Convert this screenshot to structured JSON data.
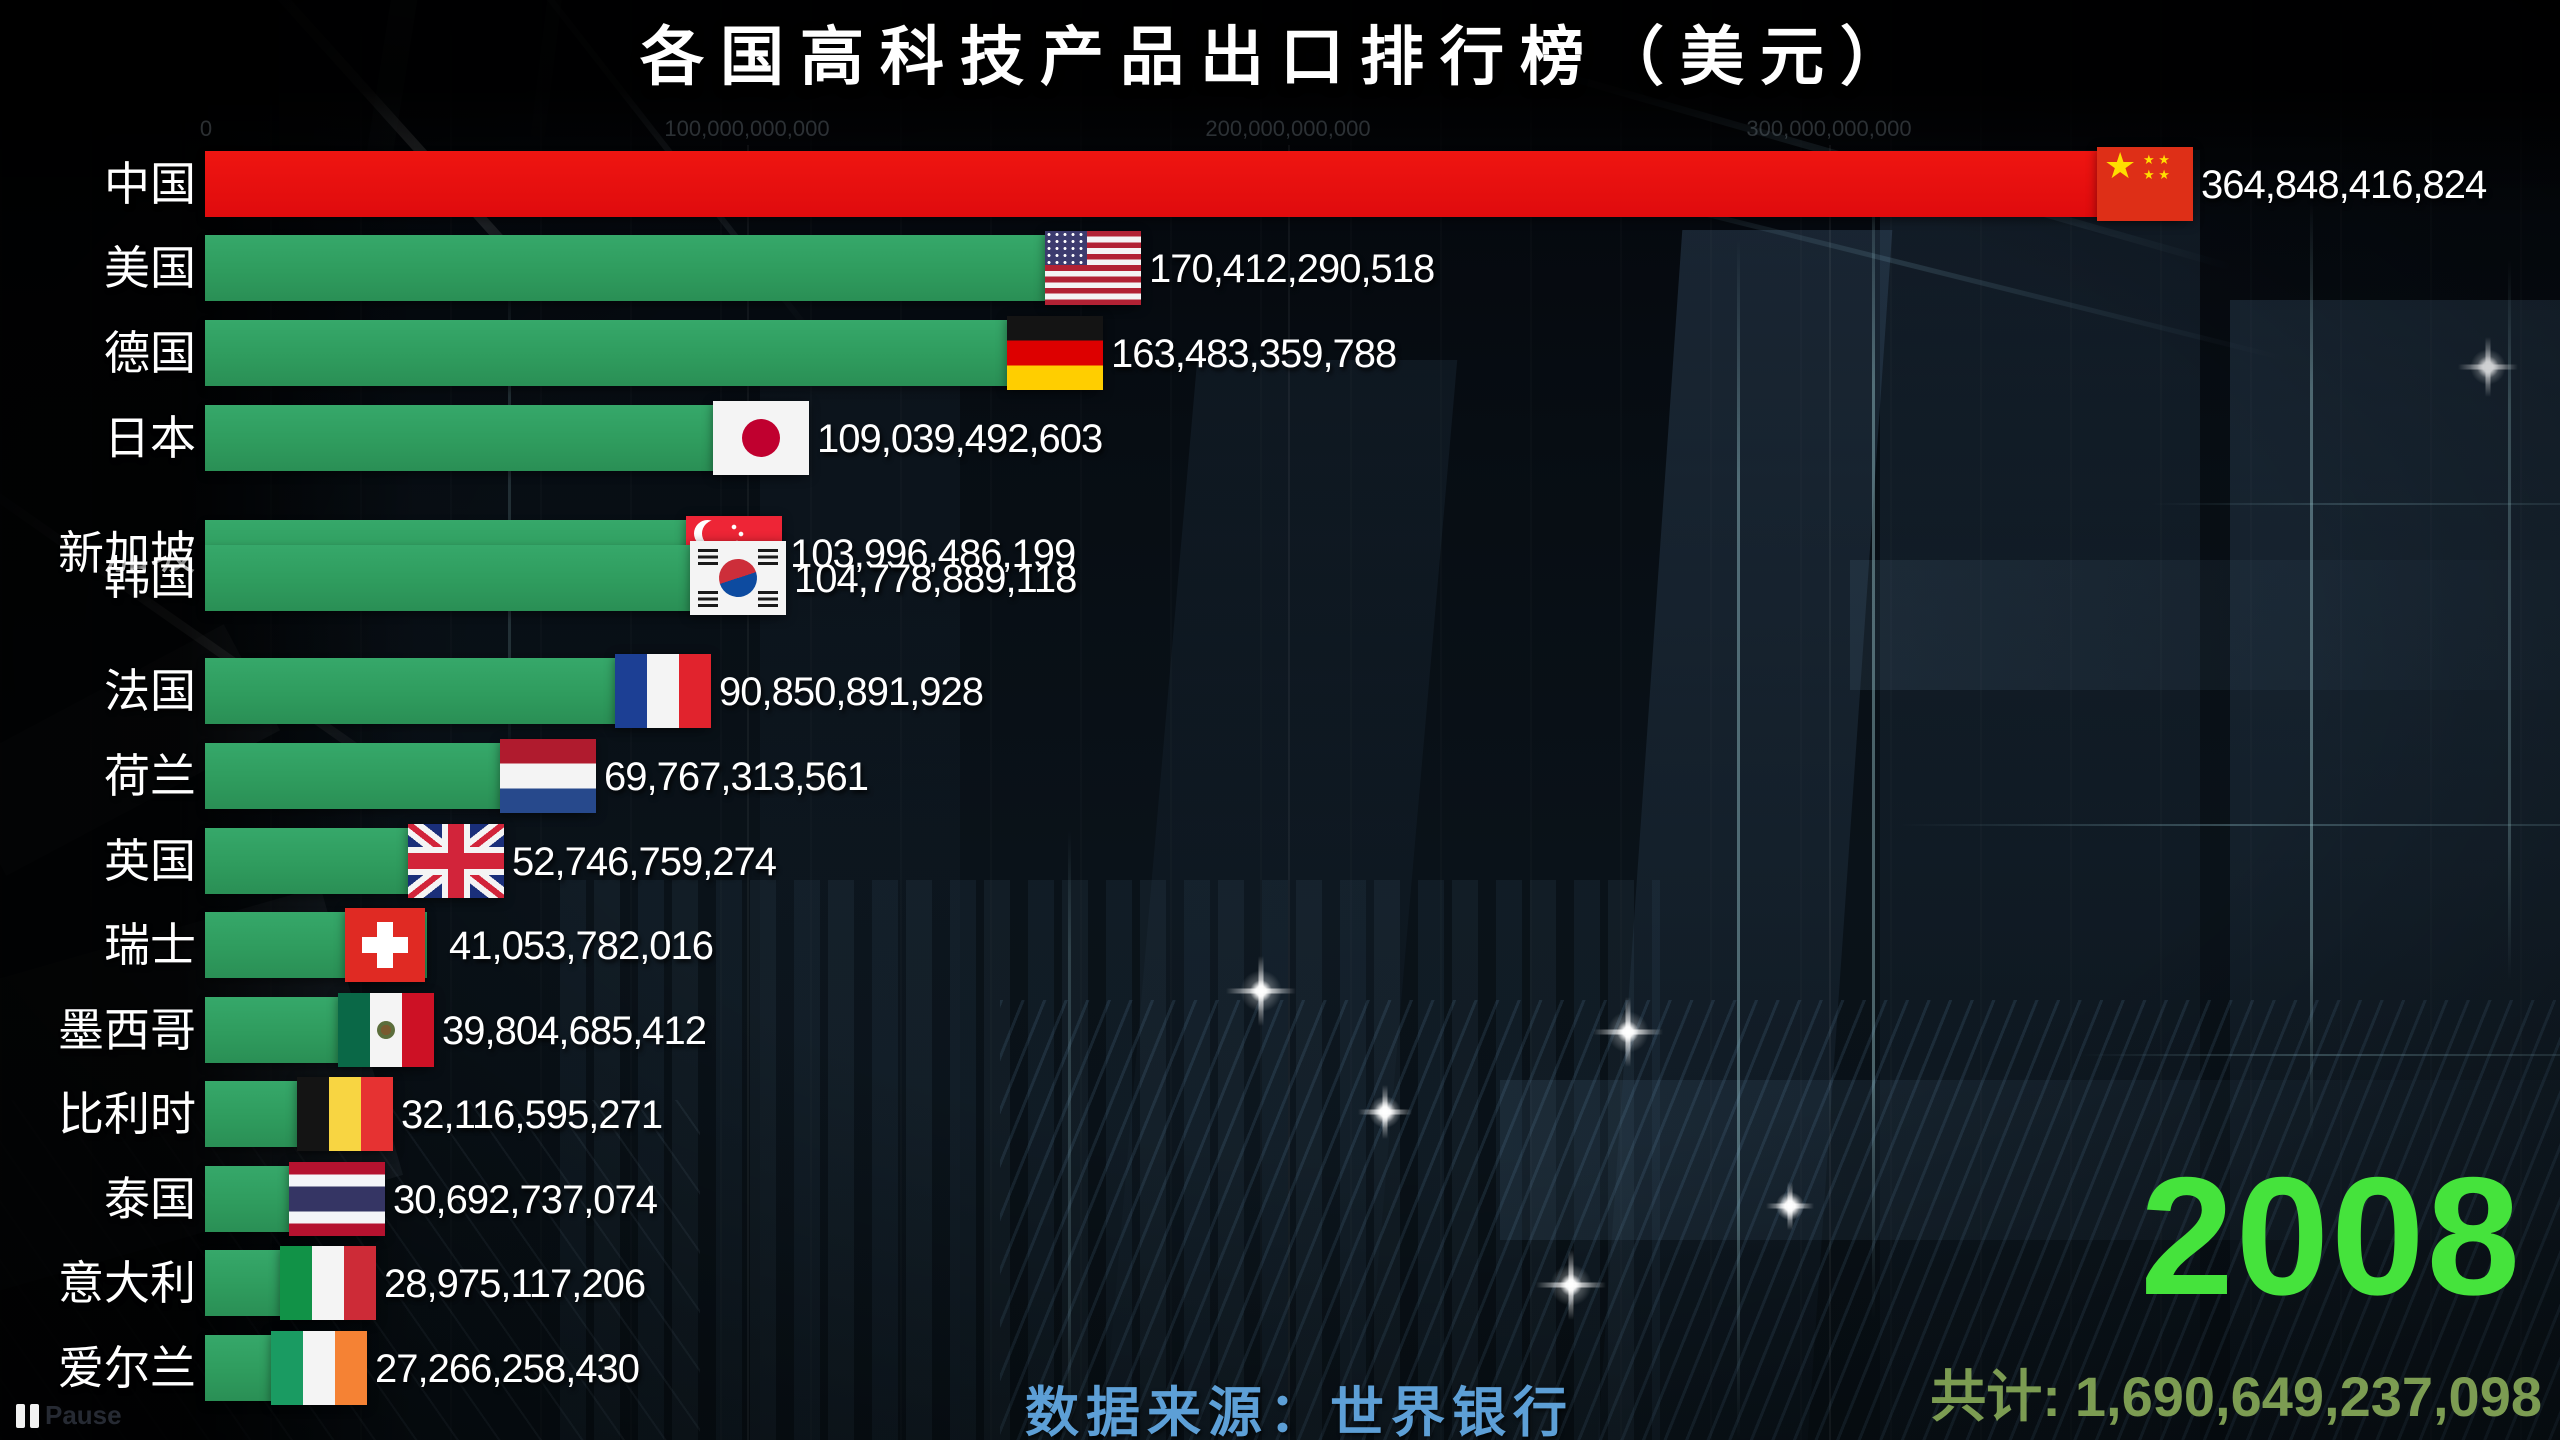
{
  "title": "各国高科技产品出口排行榜（美元）",
  "axis_ticks": [
    "0",
    "100,000,000,000",
    "200,000,000,000",
    "300,000,000,000"
  ],
  "rows": [
    {
      "country": "中国",
      "value": 364848416824,
      "value_label": "364,848,416,824",
      "flag": "cn",
      "flag_name": "china",
      "bar_color": "red"
    },
    {
      "country": "美国",
      "value": 170412290518,
      "value_label": "170,412,290,518",
      "flag": "us",
      "flag_name": "usa",
      "bar_color": "green"
    },
    {
      "country": "德国",
      "value": 163483359788,
      "value_label": "163,483,359,788",
      "flag": "de",
      "flag_name": "germany",
      "bar_color": "green"
    },
    {
      "country": "日本",
      "value": 109039492603,
      "value_label": "109,039,492,603",
      "flag": "jp",
      "flag_name": "japan",
      "bar_color": "green"
    },
    {
      "country": "新加坡",
      "value": 103996486199,
      "value_label": "103,996,486,199",
      "flag": "sg",
      "flag_name": "singapore",
      "bar_color": "green"
    },
    {
      "country": "韩国",
      "value": 104778889118,
      "value_label": "104,778,889,118",
      "flag": "kr",
      "flag_name": "south-korea",
      "bar_color": "green"
    },
    {
      "country": "法国",
      "value": 90850891928,
      "value_label": "90,850,891,928",
      "flag": "fr",
      "flag_name": "france",
      "bar_color": "green"
    },
    {
      "country": "荷兰",
      "value": 69767313561,
      "value_label": "69,767,313,561",
      "flag": "nl",
      "flag_name": "netherlands",
      "bar_color": "green"
    },
    {
      "country": "英国",
      "value": 52746759274,
      "value_label": "52,746,759,274",
      "flag": "gb",
      "flag_name": "uk",
      "bar_color": "green"
    },
    {
      "country": "瑞士",
      "value": 41053782016,
      "value_label": "41,053,782,016",
      "flag": "ch",
      "flag_name": "switzerland",
      "bar_color": "green"
    },
    {
      "country": "墨西哥",
      "value": 39804685412,
      "value_label": "39,804,685,412",
      "flag": "mx",
      "flag_name": "mexico",
      "bar_color": "green"
    },
    {
      "country": "比利时",
      "value": 32116595271,
      "value_label": "32,116,595,271",
      "flag": "be",
      "flag_name": "belgium",
      "bar_color": "green"
    },
    {
      "country": "泰国",
      "value": 30692737074,
      "value_label": "30,692,737,074",
      "flag": "th",
      "flag_name": "thailand",
      "bar_color": "green"
    },
    {
      "country": "意大利",
      "value": 28975117206,
      "value_label": "28,975,117,206",
      "flag": "it",
      "flag_name": "italy",
      "bar_color": "green"
    },
    {
      "country": "爱尔兰",
      "value": 27266258430,
      "value_label": "27,266,258,430",
      "flag": "ie",
      "flag_name": "ireland",
      "bar_color": "green"
    }
  ],
  "year": "2008",
  "total": {
    "label": "共计:",
    "value": "1,690,649,237,098"
  },
  "source": "数据来源：世界银行",
  "player": {
    "pause_label": "Pause"
  },
  "colors": {
    "bar_green": "#2f9c5e",
    "bar_red": "#e8100c",
    "year_green": "#45e33c",
    "total_green": "#7c9c52",
    "source_blue": "#5d9fd6",
    "title_white": "#ffffff"
  },
  "chart_data": {
    "type": "bar",
    "orientation": "horizontal",
    "title": "各国高科技产品出口排行榜（美元）",
    "year": "2008",
    "categories": [
      "中国",
      "美国",
      "德国",
      "日本",
      "新加坡",
      "韩国",
      "法国",
      "荷兰",
      "英国",
      "瑞士",
      "墨西哥",
      "比利时",
      "泰国",
      "意大利",
      "爱尔兰"
    ],
    "values": [
      364848416824,
      170412290518,
      163483359788,
      109039492603,
      103996486199,
      104778889118,
      90850891928,
      69767313561,
      52746759274,
      41053782016,
      39804685412,
      32116595271,
      30692737074,
      28975117206,
      27266258430
    ],
    "xlabel": "",
    "ylabel": "",
    "xlim": [
      0,
      400000000000
    ],
    "x_ticks": [
      0,
      100000000000,
      200000000000,
      300000000000
    ],
    "grid": false,
    "legend": false,
    "total": 1690649237098,
    "source": "世界银行"
  }
}
